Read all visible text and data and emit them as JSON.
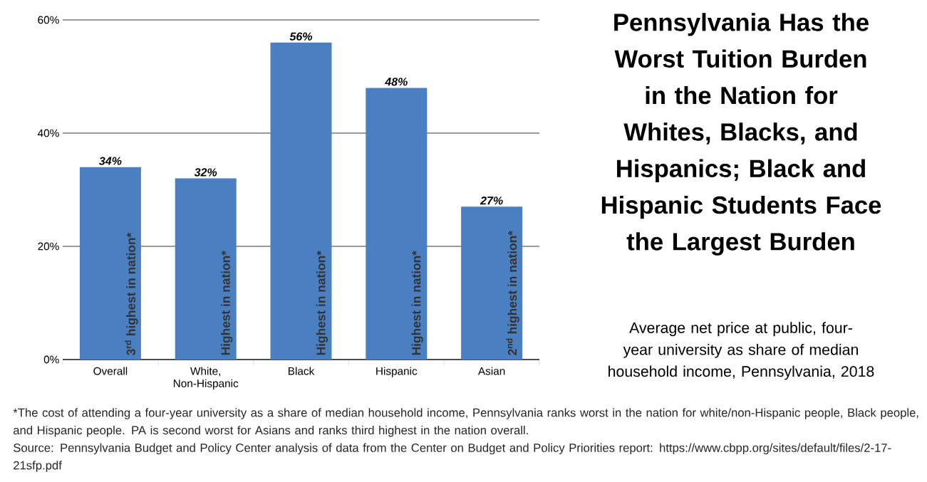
{
  "chart_data": {
    "type": "bar",
    "title": "Pennsylvania Has the Worst Tuition Burden in the Nation for Whites, Blacks, and Hispanics; Black and Hispanic Students Face the Largest Burden",
    "subtitle": "Average net price at public, four-year university as share of median household income, Pennsylvania, 2018",
    "categories": [
      "Overall",
      "White, Non-Hispanic",
      "Black",
      "Hispanic",
      "Asian"
    ],
    "values": [
      34,
      32,
      56,
      48,
      27
    ],
    "value_labels": [
      "34%",
      "32%",
      "56%",
      "48%",
      "27%"
    ],
    "color": "#4a80c1",
    "ylim": [
      0,
      60
    ],
    "yticks": [
      {
        "value": 0,
        "label": "0%"
      },
      {
        "value": 20,
        "label": "20%"
      },
      {
        "value": 40,
        "label": "40%"
      },
      {
        "value": 60,
        "label": "60%"
      }
    ],
    "grid": "y",
    "annotations": [
      {
        "text": "3$^{rd}$ highest in nation*",
        "x": "Overall",
        "y": 0
      },
      {
        "text": "Highest in nation*",
        "x": "White, Non-Hispanic",
        "y": 0
      },
      {
        "text": "Highest in nation*",
        "x": "Black",
        "y": 0
      },
      {
        "text": "Highest in nation*",
        "x": "Hispanic",
        "y": 0
      },
      {
        "text": "2$^{nd}$ highest in nation*",
        "x": "Asian",
        "y": 0
      },
      "*The cost of attending a four-year university as a share of median household income, Pennsylvania ranks worst in the nation for white/non-Hispanic people, Black people, and Hispanic people. PA is second worst for Asians and ranks third highest in the nation overall.",
      "Source: Pennsylvania Budget and Policy Center analysis of data from the Center on Budget and Policy Priorities report: https://www.cbpp.org/sites/default/files/2-17-21sfp.pdf"
    ]
  }
}
